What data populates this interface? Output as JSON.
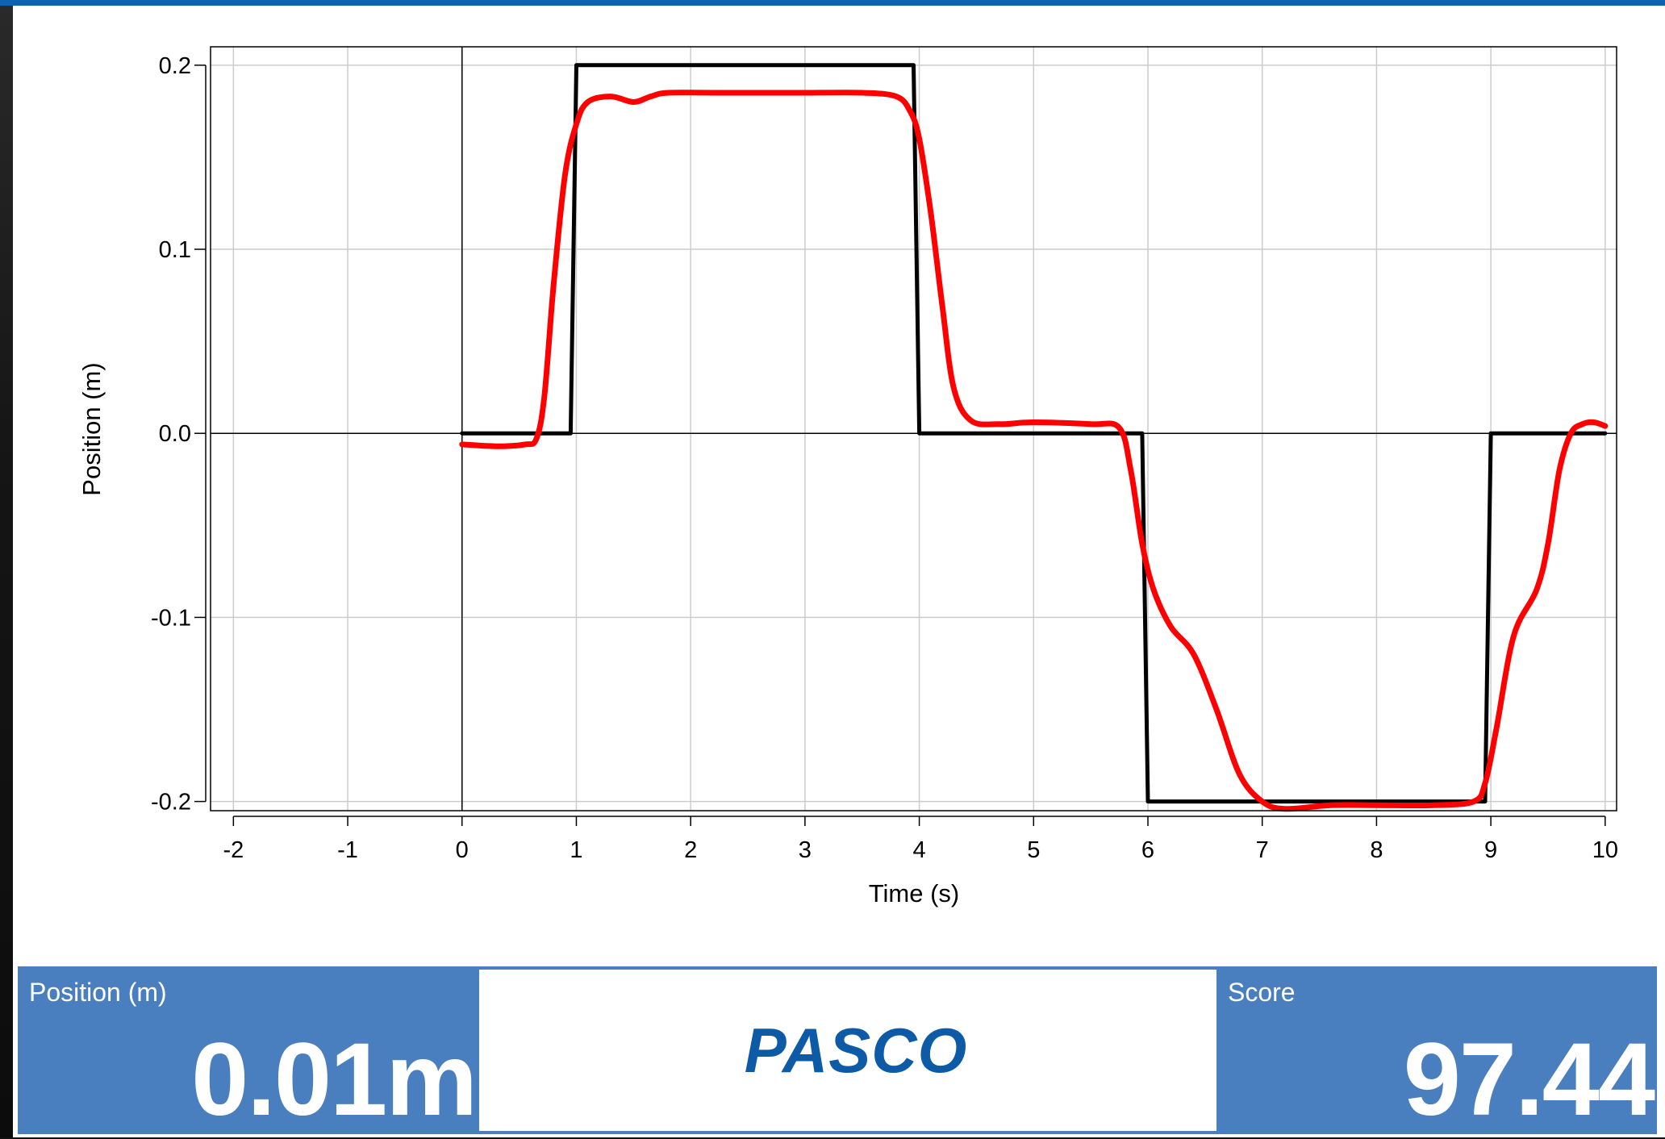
{
  "chart_data": {
    "type": "line",
    "xlabel": "Time (s)",
    "ylabel": "Position (m)",
    "xlim": [
      -2.2,
      10.1
    ],
    "ylim": [
      -0.205,
      0.21
    ],
    "x_ticks": [
      -2,
      -1,
      0,
      1,
      2,
      3,
      4,
      5,
      6,
      7,
      8,
      9,
      10
    ],
    "y_ticks": [
      -0.2,
      -0.1,
      0.0,
      0.1,
      0.2
    ],
    "y_tick_labels": [
      "-0.2",
      "-0.1",
      "0.0",
      "0.1",
      "0.2"
    ],
    "grid": true,
    "series": [
      {
        "color": "#000000",
        "x": [
          0,
          0.95,
          1.0,
          3.95,
          4.0,
          5.95,
          6.0,
          8.95,
          9.0,
          10
        ],
        "y": [
          0,
          0,
          0.2,
          0.2,
          0,
          0,
          -0.2,
          -0.2,
          0,
          0
        ]
      },
      {
        "color": "#ff0000",
        "x": [
          0,
          0.3,
          0.55,
          0.65,
          0.72,
          0.8,
          0.9,
          1.0,
          1.1,
          1.3,
          1.5,
          1.65,
          1.8,
          2.2,
          3.0,
          3.5,
          3.8,
          3.92,
          4.0,
          4.1,
          4.2,
          4.3,
          4.45,
          4.7,
          5.0,
          5.5,
          5.75,
          5.85,
          5.95,
          6.05,
          6.2,
          6.4,
          6.6,
          6.8,
          7.0,
          7.2,
          7.6,
          8.0,
          8.5,
          8.85,
          8.95,
          9.05,
          9.2,
          9.4,
          9.5,
          9.6,
          9.7,
          9.8,
          9.9,
          10.0
        ],
        "y": [
          -0.006,
          -0.007,
          -0.006,
          -0.003,
          0.02,
          0.08,
          0.14,
          0.168,
          0.18,
          0.183,
          0.18,
          0.183,
          0.185,
          0.185,
          0.185,
          0.185,
          0.183,
          0.175,
          0.16,
          0.12,
          0.07,
          0.025,
          0.007,
          0.005,
          0.006,
          0.005,
          0.003,
          -0.02,
          -0.06,
          -0.085,
          -0.105,
          -0.12,
          -0.15,
          -0.185,
          -0.2,
          -0.204,
          -0.202,
          -0.202,
          -0.202,
          -0.2,
          -0.19,
          -0.16,
          -0.11,
          -0.085,
          -0.06,
          -0.02,
          0.0,
          0.005,
          0.006,
          0.004
        ]
      }
    ]
  },
  "readout": {
    "position_label": "Position (m)",
    "position_value": "0.01m",
    "logo": "PASCO",
    "score_label": "Score",
    "score_value": "97.44"
  }
}
